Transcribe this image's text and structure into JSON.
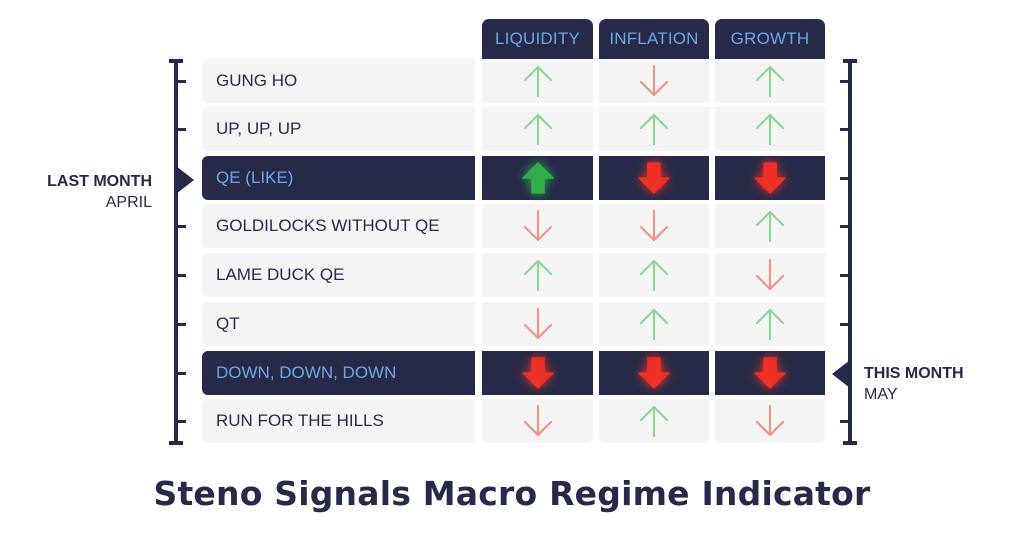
{
  "columns": [
    "LIQUIDITY",
    "INFLATION",
    "GROWTH"
  ],
  "regimes": [
    {
      "label": "GUNG HO",
      "signals": [
        "up",
        "down",
        "up"
      ],
      "highlight": false
    },
    {
      "label": "UP, UP, UP",
      "signals": [
        "up",
        "up",
        "up"
      ],
      "highlight": false
    },
    {
      "label": "QE (LIKE)",
      "signals": [
        "up",
        "down",
        "down"
      ],
      "highlight": true
    },
    {
      "label": "GOLDILOCKS WITHOUT QE",
      "signals": [
        "down",
        "down",
        "up"
      ],
      "highlight": false
    },
    {
      "label": "LAME DUCK QE",
      "signals": [
        "up",
        "up",
        "down"
      ],
      "highlight": false
    },
    {
      "label": "QT",
      "signals": [
        "down",
        "up",
        "up"
      ],
      "highlight": false
    },
    {
      "label": "DOWN, DOWN, DOWN",
      "signals": [
        "down",
        "down",
        "down"
      ],
      "highlight": true
    },
    {
      "label": "RUN FOR THE HILLS",
      "signals": [
        "down",
        "up",
        "down"
      ],
      "highlight": false
    }
  ],
  "last_month": {
    "title": "LAST MONTH",
    "month": "APRIL",
    "regime_index": 2
  },
  "this_month": {
    "title": "THIS MONTH",
    "month": "MAY",
    "regime_index": 6
  },
  "title": "Steno Signals Macro Regime Indicator",
  "colors": {
    "navy": "#262a48",
    "header_text": "#6aa7e6",
    "up_outline": "#8fd49a",
    "down_outline": "#f0948a",
    "up_solid": "#2fae4a",
    "down_solid": "#ee3124"
  },
  "icons": {
    "up": "arrow-up-icon",
    "down": "arrow-down-icon"
  }
}
